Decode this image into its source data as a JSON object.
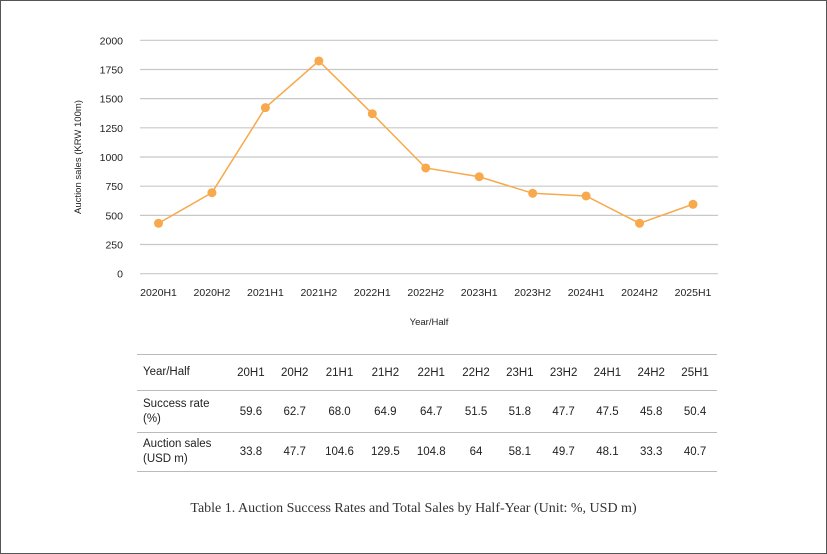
{
  "colors": {
    "line": "#f7a94b",
    "grid": "#c8c8c8"
  },
  "chart_data": {
    "type": "line",
    "title": "",
    "xlabel": "Year/Half",
    "ylabel": "Auction sales (KRW 100m)",
    "ylim": [
      0,
      2000
    ],
    "yticks": [
      0,
      250,
      500,
      750,
      1000,
      1250,
      1500,
      1750,
      2000
    ],
    "grid": true,
    "categories": [
      "2020H1",
      "2020H2",
      "2021H1",
      "2021H2",
      "2022H1",
      "2022H2",
      "2023H1",
      "2023H2",
      "2024H1",
      "2024H2",
      "2025H1"
    ],
    "series": [
      {
        "name": "Auction sales",
        "values": [
          432,
          694,
          1423,
          1823,
          1371,
          906,
          831,
          689,
          666,
          432,
          595
        ]
      }
    ]
  },
  "table": {
    "header": [
      "Year/Half",
      "20H1",
      "20H2",
      "21H1",
      "21H2",
      "22H1",
      "22H2",
      "23H1",
      "23H2",
      "24H1",
      "24H2",
      "25H1"
    ],
    "rows": [
      {
        "label": [
          "Success rate",
          "(%)"
        ],
        "values": [
          "59.6",
          "62.7",
          "68.0",
          "64.9",
          "64.7",
          "51.5",
          "51.8",
          "47.7",
          "47.5",
          "45.8",
          "50.4"
        ]
      },
      {
        "label": [
          "Auction sales",
          "(USD m)"
        ],
        "values": [
          "33.8",
          "47.7",
          "104.6",
          "129.5",
          "104.8",
          "64",
          "58.1",
          "49.7",
          "48.1",
          "33.3",
          "40.7"
        ]
      }
    ]
  },
  "caption": "Table 1. Auction Success Rates and Total Sales by Half-Year (Unit: %, USD m)"
}
